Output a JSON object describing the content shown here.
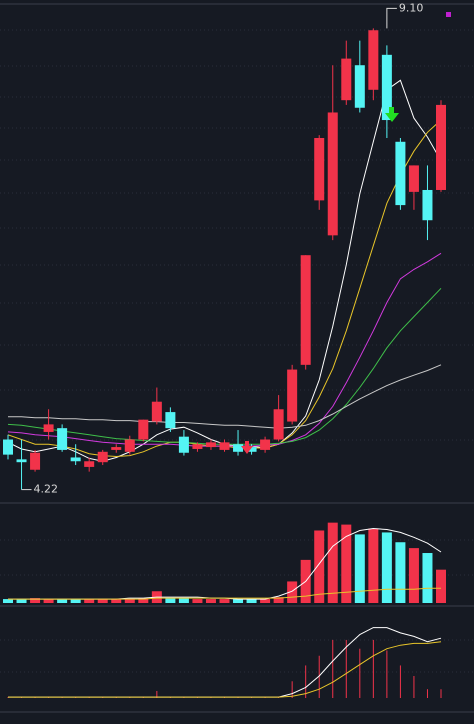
{
  "chart_data": {
    "type": "candlestick",
    "ylim": [
      4.11,
      9.4
    ],
    "up_color": "#f2334a",
    "down_color": "#54f4f4",
    "open": [
      4.75,
      4.54,
      4.43,
      4.83,
      4.87,
      4.56,
      4.46,
      4.51,
      4.64,
      4.62,
      4.75,
      4.94,
      5.04,
      4.78,
      4.65,
      4.67,
      4.64,
      4.7,
      4.67,
      4.64,
      4.75,
      4.94,
      5.54,
      7.28,
      6.91,
      8.34,
      8.71,
      8.45,
      8.82,
      7.9,
      7.37,
      7.39,
      7.39
    ],
    "high": [
      4.8,
      4.75,
      4.64,
      5.07,
      4.91,
      4.7,
      4.56,
      4.64,
      4.7,
      4.79,
      4.96,
      5.3,
      5.09,
      4.85,
      4.72,
      4.75,
      4.75,
      4.85,
      4.7,
      4.78,
      5.22,
      5.54,
      6.7,
      7.97,
      8.71,
      8.97,
      8.97,
      9.1,
      8.92,
      7.94,
      7.65,
      7.65,
      8.34
    ],
    "low": [
      4.54,
      4.22,
      4.41,
      4.75,
      4.62,
      4.48,
      4.41,
      4.48,
      4.61,
      4.59,
      4.73,
      4.91,
      4.83,
      4.58,
      4.62,
      4.64,
      4.62,
      4.58,
      4.59,
      4.61,
      4.73,
      4.91,
      5.49,
      7.18,
      6.86,
      8.29,
      8.21,
      8.34,
      7.94,
      7.18,
      7.18,
      6.86,
      7.37
    ],
    "close": [
      4.59,
      4.51,
      4.61,
      4.91,
      4.64,
      4.52,
      4.52,
      4.62,
      4.67,
      4.75,
      4.96,
      5.15,
      4.87,
      4.61,
      4.7,
      4.72,
      4.72,
      4.62,
      4.62,
      4.75,
      5.07,
      5.49,
      6.7,
      7.94,
      8.21,
      8.78,
      8.26,
      9.08,
      8.13,
      7.23,
      7.65,
      7.07,
      8.29
    ],
    "series": [
      {
        "color": "#ffffff",
        "values": [
          4.72,
          4.65,
          4.62,
          4.65,
          4.68,
          4.62,
          4.55,
          4.52,
          4.56,
          4.62,
          4.7,
          4.8,
          4.86,
          4.88,
          4.82,
          4.75,
          4.7,
          4.68,
          4.68,
          4.66,
          4.7,
          4.82,
          5.0,
          5.38,
          5.95,
          6.6,
          7.35,
          7.9,
          8.45,
          8.55,
          8.15,
          7.95,
          7.7
        ]
      },
      {
        "color": "#e8c52a",
        "values": [
          4.8,
          4.75,
          4.7,
          4.7,
          4.68,
          4.65,
          4.6,
          4.58,
          4.57,
          4.58,
          4.62,
          4.68,
          4.72,
          4.72,
          4.7,
          4.68,
          4.68,
          4.66,
          4.66,
          4.66,
          4.7,
          4.8,
          4.95,
          5.2,
          5.5,
          5.9,
          6.35,
          6.8,
          7.25,
          7.55,
          7.8,
          8.0,
          8.13
        ]
      },
      {
        "color": "#d23adf",
        "values": [
          4.83,
          4.82,
          4.8,
          4.79,
          4.78,
          4.76,
          4.74,
          4.72,
          4.71,
          4.7,
          4.7,
          4.7,
          4.7,
          4.69,
          4.68,
          4.68,
          4.68,
          4.68,
          4.68,
          4.69,
          4.7,
          4.74,
          4.8,
          4.92,
          5.1,
          5.35,
          5.62,
          5.9,
          6.2,
          6.45,
          6.55,
          6.63,
          6.72
        ]
      },
      {
        "color": "#3fbf4a",
        "values": [
          4.91,
          4.9,
          4.88,
          4.86,
          4.84,
          4.82,
          4.8,
          4.78,
          4.76,
          4.75,
          4.74,
          4.73,
          4.72,
          4.72,
          4.71,
          4.7,
          4.7,
          4.7,
          4.7,
          4.7,
          4.71,
          4.73,
          4.77,
          4.85,
          4.97,
          5.12,
          5.3,
          5.5,
          5.72,
          5.9,
          6.05,
          6.2,
          6.35
        ]
      },
      {
        "color": "#c8c8c8",
        "values": [
          4.99,
          4.99,
          4.98,
          4.98,
          4.97,
          4.97,
          4.96,
          4.96,
          4.95,
          4.95,
          4.94,
          4.94,
          4.93,
          4.93,
          4.92,
          4.91,
          4.9,
          4.9,
          4.89,
          4.88,
          4.87,
          4.88,
          4.9,
          4.95,
          5.02,
          5.1,
          5.18,
          5.25,
          5.32,
          5.38,
          5.43,
          5.48,
          5.54
        ]
      }
    ],
    "annotations": [
      {
        "text": "9.10",
        "value": 9.1,
        "index": 28
      },
      {
        "text": "4.22",
        "value": 4.22,
        "index": 1
      }
    ],
    "volume": {
      "ylim": [
        0,
        100
      ],
      "values": [
        4,
        4,
        5,
        4,
        4,
        4,
        4,
        4,
        4,
        4,
        5,
        12,
        5,
        5,
        4,
        4,
        4,
        4,
        4,
        4,
        6,
        22,
        44,
        74,
        82,
        80,
        70,
        76,
        72,
        62,
        56,
        51,
        34
      ],
      "series": [
        {
          "color": "#ffffff",
          "values": [
            4,
            4,
            4,
            4,
            4,
            4,
            4,
            4,
            4,
            5,
            5,
            6,
            6,
            6,
            6,
            5,
            5,
            4,
            4,
            4,
            7,
            12,
            22,
            40,
            58,
            68,
            74,
            76,
            75,
            72,
            67,
            61,
            52
          ]
        },
        {
          "color": "#e8c52a",
          "values": [
            4,
            4,
            4,
            4,
            4,
            4,
            4,
            4,
            4,
            4,
            4,
            5,
            5,
            5,
            5,
            5,
            5,
            5,
            5,
            5,
            5,
            6,
            7,
            9,
            10,
            11,
            12,
            13,
            14,
            14,
            14,
            15,
            15
          ]
        }
      ]
    },
    "indicator": {
      "ylim": [
        0,
        100
      ],
      "color": "#f2334a",
      "values": [
        1,
        1,
        1,
        1,
        1,
        1,
        1,
        1,
        1,
        1,
        1,
        8,
        1,
        1,
        1,
        1,
        1,
        1,
        1,
        1,
        1,
        19,
        37,
        48,
        66,
        66,
        56,
        66,
        54,
        37,
        25,
        10,
        10
      ],
      "series": [
        {
          "color": "#ffffff",
          "values": [
            1,
            1,
            1,
            1,
            1,
            1,
            1,
            1,
            1,
            1,
            1,
            1,
            1,
            1,
            1,
            1,
            1,
            1,
            1,
            1,
            1,
            5,
            12,
            25,
            42,
            58,
            72,
            80,
            80,
            74,
            70,
            64,
            68
          ]
        },
        {
          "color": "#e8c52a",
          "values": [
            1,
            1,
            1,
            1,
            1,
            1,
            1,
            1,
            1,
            1,
            1,
            1,
            1,
            1,
            1,
            1,
            1,
            1,
            1,
            1,
            1,
            2,
            5,
            10,
            18,
            28,
            38,
            48,
            56,
            60,
            62,
            62,
            64
          ]
        }
      ]
    }
  }
}
